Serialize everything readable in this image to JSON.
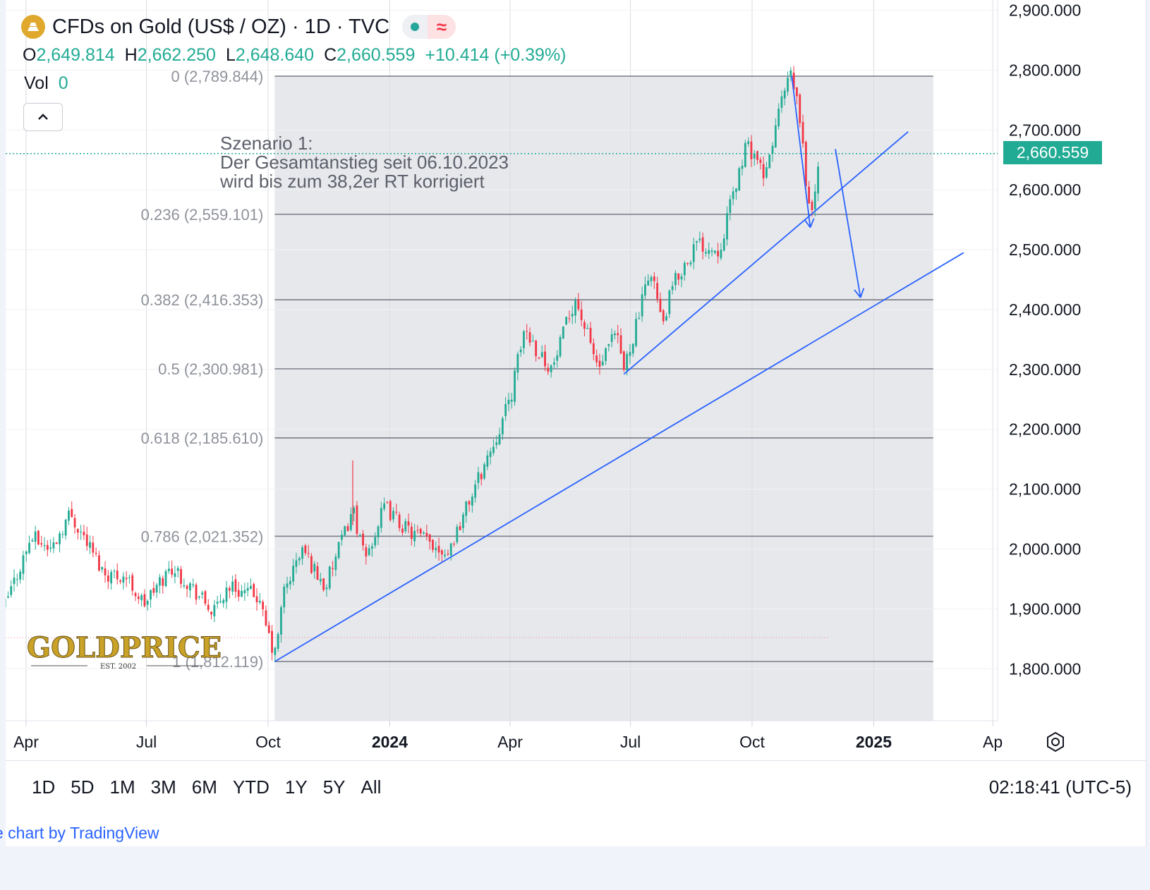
{
  "header": {
    "title": "CFDs on Gold (US$ / OZ) · 1D · TVC",
    "ohlc": [
      {
        "label": "O",
        "value": "2,649.814"
      },
      {
        "label": "H",
        "value": "2,662.250"
      },
      {
        "label": "L",
        "value": "2,648.640"
      },
      {
        "label": "C",
        "value": "2,660.559"
      }
    ],
    "change": "+10.414 (+0.39%)",
    "vol_label": "Vol",
    "vol_value": "0"
  },
  "annotation": [
    "Szenario 1:",
    "Der Gesamtanstieg seit 06.10.2023",
    "wird bis zum 38,2er RT korrigiert"
  ],
  "watermark": {
    "logo": "GOLDPRICE",
    "est": "EST. 2002"
  },
  "colors": {
    "up": "#22ab94",
    "down": "#f23645",
    "trendline": "#2962ff",
    "fib": "#787b86",
    "zone": "#e7e8ec"
  },
  "footer": {
    "ranges": [
      "1D",
      "5D",
      "1M",
      "3M",
      "6M",
      "YTD",
      "1Y",
      "5Y",
      "All"
    ],
    "clock": "02:18:41 (UTC-5)",
    "credit": "e chart by TradingView"
  },
  "chart_data": {
    "type": "candlestick",
    "symbol": "CFDs on Gold (US$ / OZ)",
    "interval": "1D",
    "last_price": "2,660.559",
    "y_axis": {
      "ticks": [
        1800,
        1900,
        2000,
        2100,
        2200,
        2300,
        2400,
        2500,
        2600,
        2700,
        2800,
        2900
      ],
      "tick_labels": [
        "1,800.000",
        "1,900.000",
        "2,000.000",
        "2,100.000",
        "2,200.000",
        "2,300.000",
        "2,400.000",
        "2,500.000",
        "2,600.000",
        "2,700.000",
        "2,800.000",
        "2,900.000"
      ]
    },
    "x_axis": {
      "ticks": [
        {
          "label": "Apr",
          "date": "2023-04-01",
          "bold": false
        },
        {
          "label": "Jul",
          "date": "2023-07-01",
          "bold": false
        },
        {
          "label": "Oct",
          "date": "2023-10-01",
          "bold": false
        },
        {
          "label": "2024",
          "date": "2024-01-01",
          "bold": true
        },
        {
          "label": "Apr",
          "date": "2024-04-01",
          "bold": false
        },
        {
          "label": "Jul",
          "date": "2024-07-01",
          "bold": false
        },
        {
          "label": "Oct",
          "date": "2024-10-01",
          "bold": false
        },
        {
          "label": "2025",
          "date": "2025-01-01",
          "bold": true
        },
        {
          "label": "Ap",
          "date": "2025-04-01",
          "bold": false
        }
      ]
    },
    "fibonacci": {
      "from_date": "2023-10-06",
      "to_date": "2025-02-15",
      "levels": [
        {
          "ratio": "0",
          "price": 2789.844,
          "label": "0 (2,789.844)"
        },
        {
          "ratio": "0.236",
          "price": 2559.101,
          "label": "0.236 (2,559.101)"
        },
        {
          "ratio": "0.382",
          "price": 2416.353,
          "label": "0.382 (2,416.353)"
        },
        {
          "ratio": "0.5",
          "price": 2300.981,
          "label": "0.5 (2,300.981)"
        },
        {
          "ratio": "0.618",
          "price": 2185.61,
          "label": "0.618 (2,185.610)"
        },
        {
          "ratio": "0.786",
          "price": 2021.352,
          "label": "0.786 (2,021.352)"
        },
        {
          "ratio": "1",
          "price": 1812.119,
          "label": "1 (1,812.119)"
        }
      ]
    },
    "trendlines": [
      {
        "from": [
          "2023-10-06",
          1812
        ],
        "to": [
          "2025-03-10",
          2495
        ]
      },
      {
        "from": [
          "2024-06-26",
          2292
        ],
        "to": [
          "2025-01-27",
          2697
        ]
      }
    ],
    "arrows": [
      {
        "from": [
          "2024-10-31",
          2790
        ],
        "to": [
          "2024-11-14",
          2537
        ]
      },
      {
        "from": [
          "2024-12-03",
          2668
        ],
        "to": [
          "2024-12-22",
          2420
        ]
      }
    ],
    "last_price_value": 2660.559,
    "dotted_low_level": 1852,
    "anchors": [
      [
        "2023-03-15",
        1900
      ],
      [
        "2023-04-05",
        2020
      ],
      [
        "2023-04-20",
        2000
      ],
      [
        "2023-05-04",
        2060
      ],
      [
        "2023-05-15",
        2020
      ],
      [
        "2023-05-30",
        1960
      ],
      [
        "2023-06-15",
        1955
      ],
      [
        "2023-06-29",
        1908
      ],
      [
        "2023-07-20",
        1970
      ],
      [
        "2023-08-01",
        1945
      ],
      [
        "2023-08-21",
        1892
      ],
      [
        "2023-09-01",
        1940
      ],
      [
        "2023-09-15",
        1925
      ],
      [
        "2023-09-22",
        1925
      ],
      [
        "2023-10-06",
        1820
      ],
      [
        "2023-10-13",
        1930
      ],
      [
        "2023-10-27",
        2000
      ],
      [
        "2023-11-13",
        1935
      ],
      [
        "2023-11-30",
        2040
      ],
      [
        "2023-12-04",
        2070
      ],
      [
        "2023-12-13",
        1980
      ],
      [
        "2023-12-28",
        2070
      ],
      [
        "2024-01-15",
        2030
      ],
      [
        "2024-02-14",
        1995
      ],
      [
        "2024-03-01",
        2080
      ],
      [
        "2024-03-20",
        2180
      ],
      [
        "2024-04-01",
        2250
      ],
      [
        "2024-04-12",
        2370
      ],
      [
        "2024-04-22",
        2330
      ],
      [
        "2024-05-03",
        2300
      ],
      [
        "2024-05-20",
        2420
      ],
      [
        "2024-06-07",
        2300
      ],
      [
        "2024-06-20",
        2360
      ],
      [
        "2024-06-26",
        2300
      ],
      [
        "2024-07-17",
        2470
      ],
      [
        "2024-07-25",
        2370
      ],
      [
        "2024-08-02",
        2440
      ],
      [
        "2024-08-20",
        2510
      ],
      [
        "2024-09-06",
        2500
      ],
      [
        "2024-09-20",
        2620
      ],
      [
        "2024-09-26",
        2670
      ],
      [
        "2024-10-04",
        2660
      ],
      [
        "2024-10-10",
        2610
      ],
      [
        "2024-10-22",
        2740
      ],
      [
        "2024-10-30",
        2790
      ],
      [
        "2024-11-05",
        2740
      ],
      [
        "2024-11-14",
        2550
      ],
      [
        "2024-11-22",
        2660
      ]
    ]
  }
}
